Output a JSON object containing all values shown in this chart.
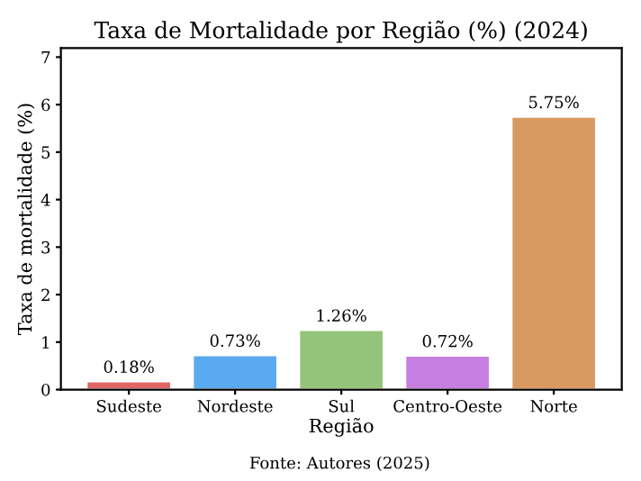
{
  "chart_data": {
    "type": "bar",
    "title": "Taxa de Mortalidade por Região (%) (2024)",
    "xlabel": "Região",
    "ylabel": "Taxa de mortalidade (%)",
    "categories": [
      "Sudeste",
      "Nordeste",
      "Sul",
      "Centro-Oeste",
      "Norte"
    ],
    "values": [
      0.18,
      0.73,
      1.26,
      0.72,
      5.75
    ],
    "colors": [
      "#e06666",
      "#5aaaf0",
      "#94c47a",
      "#c67ee0",
      "#d99a62"
    ],
    "value_labels": [
      "0.18%",
      "0.73%",
      "1.26%",
      "0.72%",
      "5.75%"
    ],
    "ylim": [
      0,
      7.19
    ],
    "yticks": [
      0,
      1,
      2,
      3,
      4,
      5,
      6,
      7
    ],
    "grid": false,
    "annotations": [
      "Fonte: Autores (2025)"
    ]
  }
}
